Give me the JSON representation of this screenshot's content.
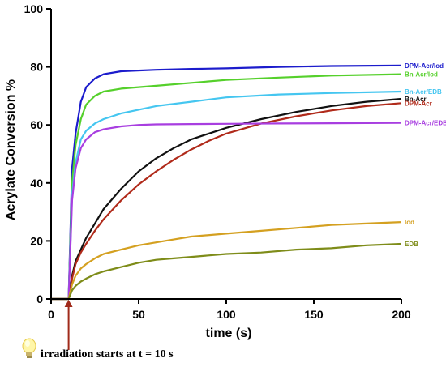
{
  "chart_data": {
    "type": "line",
    "title": "",
    "xlabel": "time (s)",
    "ylabel": "Acrylate Conversion %",
    "xlim": [
      0,
      200
    ],
    "ylim": [
      0,
      100
    ],
    "xticks": [
      "0",
      "50",
      "100",
      "150",
      "200"
    ],
    "yticks": [
      "0",
      "20",
      "40",
      "60",
      "80",
      "100"
    ],
    "grid": false,
    "legend": "inline labels at right end of each curve",
    "series": [
      {
        "name": "DPM-Acr/Iod",
        "color": "#1c1ccc",
        "x": [
          0,
          10,
          12,
          14,
          17,
          20,
          25,
          30,
          40,
          60,
          80,
          100,
          130,
          160,
          200
        ],
        "y": [
          0,
          0,
          45,
          57,
          68,
          73,
          76,
          77.5,
          78.5,
          79,
          79.3,
          79.5,
          80,
          80.3,
          80.5
        ]
      },
      {
        "name": "Bn-Acr/Iod",
        "color": "#55d02b",
        "x": [
          0,
          10,
          12,
          14,
          17,
          20,
          25,
          30,
          40,
          60,
          80,
          100,
          130,
          160,
          200
        ],
        "y": [
          0,
          0,
          40,
          53,
          62,
          67,
          70,
          71.5,
          72.5,
          73.5,
          74.5,
          75.5,
          76.3,
          77,
          77.5
        ]
      },
      {
        "name": "Bn-Acr/EDB",
        "color": "#45c6f0",
        "x": [
          0,
          10,
          12,
          14,
          17,
          20,
          25,
          30,
          40,
          60,
          80,
          100,
          130,
          160,
          200
        ],
        "y": [
          0,
          0,
          36,
          47,
          55,
          58,
          60.5,
          62,
          64,
          66.5,
          68,
          69.5,
          70.5,
          71,
          71.5
        ]
      },
      {
        "name": "Bn-Acr",
        "color": "#111111",
        "x": [
          0,
          10,
          12,
          14,
          17,
          20,
          25,
          30,
          40,
          50,
          60,
          70,
          80,
          90,
          100,
          120,
          140,
          160,
          180,
          200
        ],
        "y": [
          0,
          0,
          8,
          13,
          17,
          21,
          26,
          31,
          38,
          44,
          48.5,
          52,
          55,
          57,
          59,
          62,
          64.5,
          66.5,
          68,
          69
        ]
      },
      {
        "name": "DPM-Acr",
        "color": "#b02a1a",
        "x": [
          0,
          10,
          12,
          14,
          17,
          20,
          25,
          30,
          40,
          50,
          60,
          70,
          80,
          90,
          100,
          120,
          140,
          160,
          180,
          200
        ],
        "y": [
          0,
          0,
          7,
          12,
          16,
          19,
          23.5,
          27.5,
          34,
          39.5,
          44,
          48,
          51.5,
          54.5,
          57,
          60.5,
          63,
          65,
          66.5,
          67.5
        ]
      },
      {
        "name": "DPM-Acr/EDB",
        "color": "#a83ee0",
        "x": [
          0,
          10,
          12,
          14,
          17,
          20,
          25,
          30,
          40,
          50,
          60,
          80,
          100,
          130,
          160,
          200
        ],
        "y": [
          0,
          0,
          34,
          45,
          52,
          55,
          57.5,
          58.5,
          59.5,
          60,
          60.2,
          60.3,
          60.4,
          60.5,
          60.6,
          60.7
        ]
      },
      {
        "name": "Iod",
        "color": "#d4a020",
        "x": [
          0,
          10,
          12,
          14,
          17,
          20,
          25,
          30,
          40,
          50,
          60,
          70,
          80,
          100,
          120,
          140,
          160,
          180,
          200
        ],
        "y": [
          0,
          0,
          5,
          8,
          10.5,
          12,
          14,
          15.5,
          17,
          18.5,
          19.5,
          20.5,
          21.5,
          22.5,
          23.5,
          24.5,
          25.5,
          26,
          26.5
        ]
      },
      {
        "name": "EDB",
        "color": "#7e8c19",
        "x": [
          0,
          10,
          12,
          14,
          17,
          20,
          25,
          30,
          40,
          50,
          60,
          70,
          80,
          100,
          120,
          140,
          160,
          180,
          200
        ],
        "y": [
          0,
          0,
          3,
          4.5,
          6,
          7,
          8.5,
          9.5,
          11,
          12.5,
          13.5,
          14,
          14.5,
          15.5,
          16,
          17,
          17.5,
          18.5,
          19
        ]
      }
    ],
    "annotation": {
      "text": "irradiation starts at t = 10 s",
      "x": 10,
      "color": "#a02a1a",
      "icon": "light-bulb-icon"
    }
  }
}
